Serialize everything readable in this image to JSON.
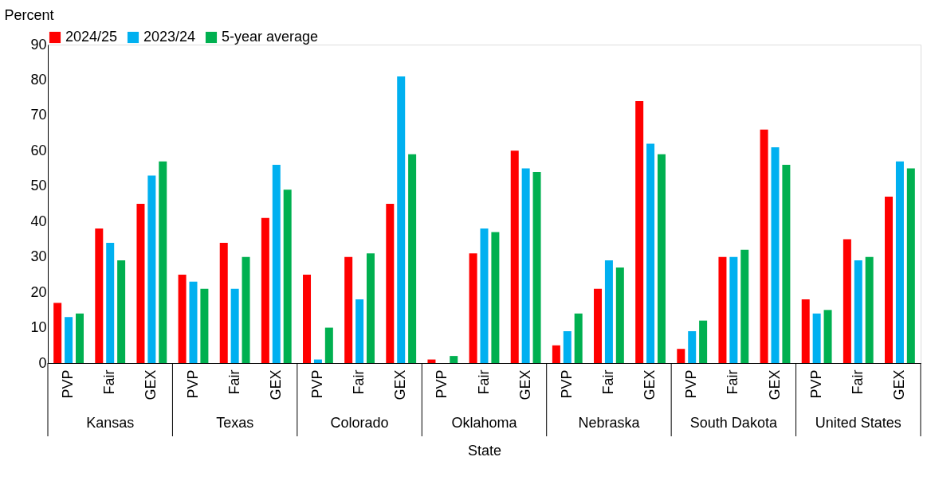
{
  "chart_data": {
    "type": "bar",
    "ylabel": "Percent",
    "xlabel": "State",
    "categories": [
      "PVP",
      "Fair",
      "GEX",
      "PVP",
      "Fair",
      "GEX",
      "PVP",
      "Fair",
      "GEX",
      "PVP",
      "Fair",
      "GEX",
      "PVP",
      "Fair",
      "GEX",
      "PVP",
      "Fair",
      "GEX",
      "PVP",
      "Fair",
      "GEX"
    ],
    "annotations": [
      "Kansas",
      "Texas",
      "Colorado",
      "Oklahoma",
      "Nebraska",
      "South Dakota",
      "United States"
    ],
    "series": [
      {
        "name": "2024/25",
        "color": "#ff0000",
        "values": [
          17,
          38,
          45,
          25,
          34,
          41,
          25,
          30,
          45,
          1,
          31,
          60,
          5,
          21,
          74,
          4,
          30,
          66,
          18,
          35,
          47
        ]
      },
      {
        "name": "2023/24",
        "color": "#00b0f0",
        "values": [
          13,
          34,
          53,
          23,
          21,
          56,
          1,
          18,
          81,
          0,
          38,
          55,
          9,
          29,
          62,
          9,
          30,
          61,
          14,
          29,
          57
        ]
      },
      {
        "name": "5-year average",
        "color": "#00b050",
        "values": [
          14,
          29,
          57,
          21,
          30,
          49,
          10,
          31,
          59,
          2,
          37,
          54,
          14,
          27,
          59,
          12,
          32,
          56,
          15,
          30,
          55
        ]
      }
    ],
    "ylim": [
      0,
      90
    ],
    "yticks": [
      0,
      10,
      20,
      30,
      40,
      50,
      60,
      70,
      80,
      90
    ],
    "grid": false,
    "legend": "top"
  }
}
